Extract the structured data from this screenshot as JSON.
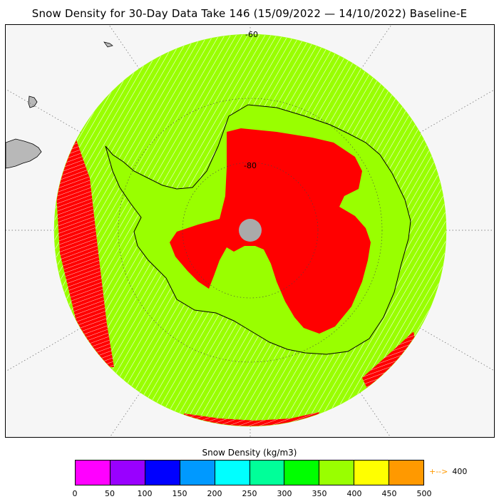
{
  "title": "Snow Density for 30-Day Data Take 146 (15/09/2022 — 14/10/2022) Baseline-E",
  "map": {
    "lat_labels": [
      "-60",
      "-80"
    ],
    "colors": {
      "ocean": "#f6f6f6",
      "land": "#b8b8b8",
      "green": "#99ff00",
      "red": "#ff0000",
      "pole_hole": "#aaaaaa",
      "coast": "#000000",
      "grid": "#666666"
    }
  },
  "colorbar": {
    "title": "Snow Density (kg/m3)",
    "colors": [
      "#ff00ff",
      "#9900ff",
      "#0000ff",
      "#0099ff",
      "#00ffff",
      "#00ff99",
      "#00ff00",
      "#99ff00",
      "#ffff00",
      "#ff9900"
    ],
    "ticks": [
      "0",
      "50",
      "100",
      "150",
      "200",
      "250",
      "300",
      "350",
      "400",
      "450",
      "500"
    ],
    "overflow_label": "400",
    "overflow_color": "#ff9900"
  }
}
